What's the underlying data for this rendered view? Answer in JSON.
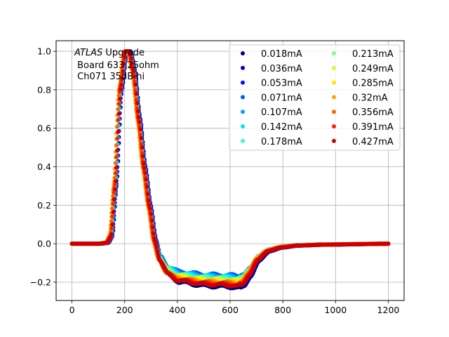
{
  "chart_data": {
    "type": "scatter",
    "title": "",
    "xlabel": "",
    "ylabel": "",
    "xlim": [
      -60,
      1260
    ],
    "ylim": [
      -0.295,
      1.055
    ],
    "xticks": [
      0,
      200,
      400,
      600,
      800,
      1000,
      1200
    ],
    "yticks": [
      -0.2,
      0.0,
      0.2,
      0.4,
      0.6,
      0.8,
      1.0
    ],
    "xtick_labels": [
      "0",
      "200",
      "400",
      "600",
      "800",
      "1000",
      "1200"
    ],
    "ytick_labels": [
      "−0.2",
      "0.0",
      "0.2",
      "0.4",
      "0.6",
      "0.8",
      "1.0"
    ],
    "grid": true,
    "legend_position": "top-right",
    "legend_columns": 2,
    "annotation": {
      "italic_part": "ATLAS",
      "line1_rest": " Upgrade",
      "line2": " Board 633 25ohm",
      "line3": " Ch071 35dB hi"
    },
    "shape_anchors": {
      "x": [
        0,
        100,
        130,
        145,
        160,
        180,
        200,
        215,
        230,
        250,
        270,
        290,
        310,
        330,
        360,
        400,
        500,
        600,
        625,
        645,
        670,
        700,
        740,
        790,
        850,
        950,
        1200
      ],
      "y": [
        0,
        0,
        0.005,
        0.04,
        0.3,
        0.8,
        1.0,
        1.0,
        0.9,
        0.65,
        0.4,
        0.2,
        0.02,
        -0.09,
        -0.165,
        -0.2,
        -0.22,
        -0.225,
        -0.23,
        -0.22,
        -0.17,
        -0.09,
        -0.04,
        -0.02,
        -0.01,
        -0.005,
        0
      ]
    },
    "series": [
      {
        "name": "0.018mA",
        "color": "#00007f",
        "shift": 9,
        "tail_scale": 1.02,
        "undershoot": -0.22
      },
      {
        "name": "0.036mA",
        "color": "#0000c8",
        "shift": 8,
        "tail_scale": 1.0,
        "undershoot": -0.21
      },
      {
        "name": "0.053mA",
        "color": "#0010ff",
        "shift": 7,
        "tail_scale": 0.9,
        "undershoot": -0.185
      },
      {
        "name": "0.071mA",
        "color": "#0058ff",
        "shift": 6,
        "tail_scale": 0.78,
        "undershoot": -0.16
      },
      {
        "name": "0.107mA",
        "color": "#00a0ff",
        "shift": 5,
        "tail_scale": 0.8,
        "undershoot": -0.165
      },
      {
        "name": "0.142mA",
        "color": "#00e4f8",
        "shift": 3,
        "tail_scale": 0.83,
        "undershoot": -0.17
      },
      {
        "name": "0.178mA",
        "color": "#2dffc9",
        "shift": 2,
        "tail_scale": 0.86,
        "undershoot": -0.175
      },
      {
        "name": "0.213mA",
        "color": "#7dff79",
        "shift": 1,
        "tail_scale": 0.88,
        "undershoot": -0.18
      },
      {
        "name": "0.249mA",
        "color": "#c9ff2d",
        "shift": 0,
        "tail_scale": 0.9,
        "undershoot": -0.185
      },
      {
        "name": "0.285mA",
        "color": "#ffe500",
        "shift": -1,
        "tail_scale": 0.93,
        "undershoot": -0.19
      },
      {
        "name": "0.32mA",
        "color": "#ffa400",
        "shift": -2,
        "tail_scale": 0.96,
        "undershoot": -0.195
      },
      {
        "name": "0.356mA",
        "color": "#ff6300",
        "shift": 0,
        "tail_scale": 0.98,
        "undershoot": -0.2
      },
      {
        "name": "0.391mA",
        "color": "#ff2200",
        "shift": 2,
        "tail_scale": 1.0,
        "undershoot": -0.205
      },
      {
        "name": "0.427mA",
        "color": "#cd0000",
        "shift": 4,
        "tail_scale": 1.0,
        "undershoot": -0.21
      }
    ]
  }
}
